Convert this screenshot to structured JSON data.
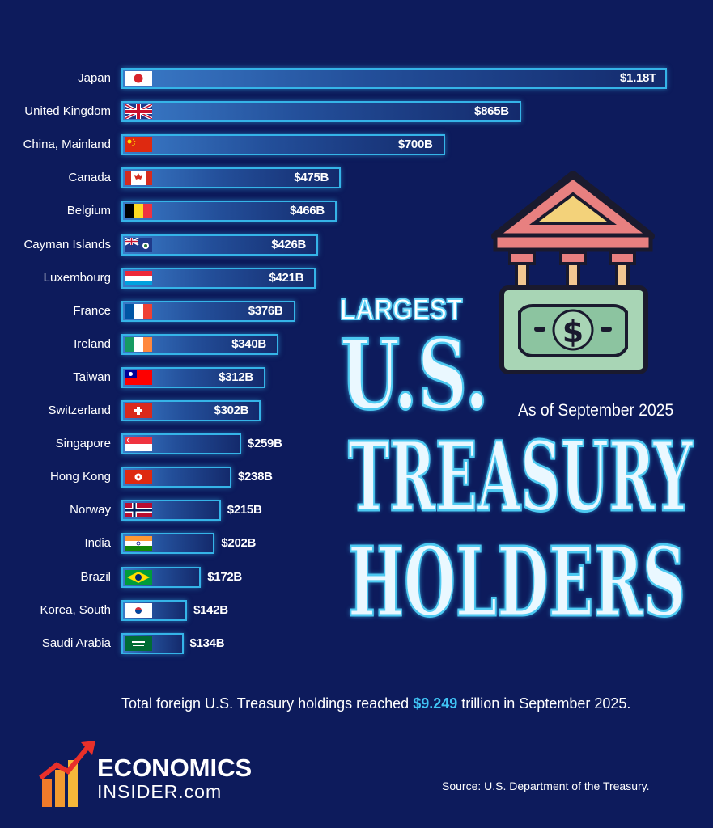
{
  "chart_data": {
    "type": "bar",
    "orientation": "horizontal",
    "title": "LARGEST U.S. TREASURY HOLDERS",
    "title_parts": [
      "LARGEST",
      "U.S.",
      "TREASURY",
      "HOLDERS"
    ],
    "subtitle": "As of September 2025",
    "categories": [
      "Japan",
      "United Kingdom",
      "China, Mainland",
      "Canada",
      "Belgium",
      "Cayman Islands",
      "Luxembourg",
      "France",
      "Ireland",
      "Taiwan",
      "Switzerland",
      "Singapore",
      "Hong Kong",
      "Norway",
      "India",
      "Brazil",
      "Korea, South",
      "Saudi Arabia"
    ],
    "values": [
      1180,
      865,
      700,
      475,
      466,
      426,
      421,
      376,
      340,
      312,
      302,
      259,
      238,
      215,
      202,
      172,
      142,
      134
    ],
    "value_labels": [
      "$1.18T",
      "$865B",
      "$700B",
      "$475B",
      "$466B",
      "$426B",
      "$421B",
      "$376B",
      "$340B",
      "$312B",
      "$302B",
      "$259B",
      "$238B",
      "$215B",
      "$202B",
      "$172B",
      "$142B",
      "$134B"
    ],
    "unit": "USD billions",
    "xlim": [
      0,
      1180
    ]
  },
  "footer": {
    "note_before": "Total foreign U.S. Treasury holdings reached ",
    "note_highlight": "$9.249",
    "note_after": " trillion in September 2025.",
    "source": "Source: U.S. Department of the Treasury."
  },
  "logo": {
    "line1": "ECONOMICS",
    "line2": "INSIDER.com"
  },
  "flags": [
    "japan-flag",
    "uk-flag",
    "china-flag",
    "canada-flag",
    "belgium-flag",
    "cayman-flag",
    "luxembourg-flag",
    "france-flag",
    "ireland-flag",
    "taiwan-flag",
    "switzerland-flag",
    "singapore-flag",
    "hongkong-flag",
    "norway-flag",
    "india-flag",
    "brazil-flag",
    "korea-flag",
    "saudi-flag"
  ],
  "colors": {
    "background": "#0d1b5c",
    "bar_border": "#35b4e8",
    "highlight": "#40c4f5",
    "building_roof": "#e87a7a",
    "building_roof_inner": "#f3d27a",
    "money": "#a8d5b5"
  }
}
